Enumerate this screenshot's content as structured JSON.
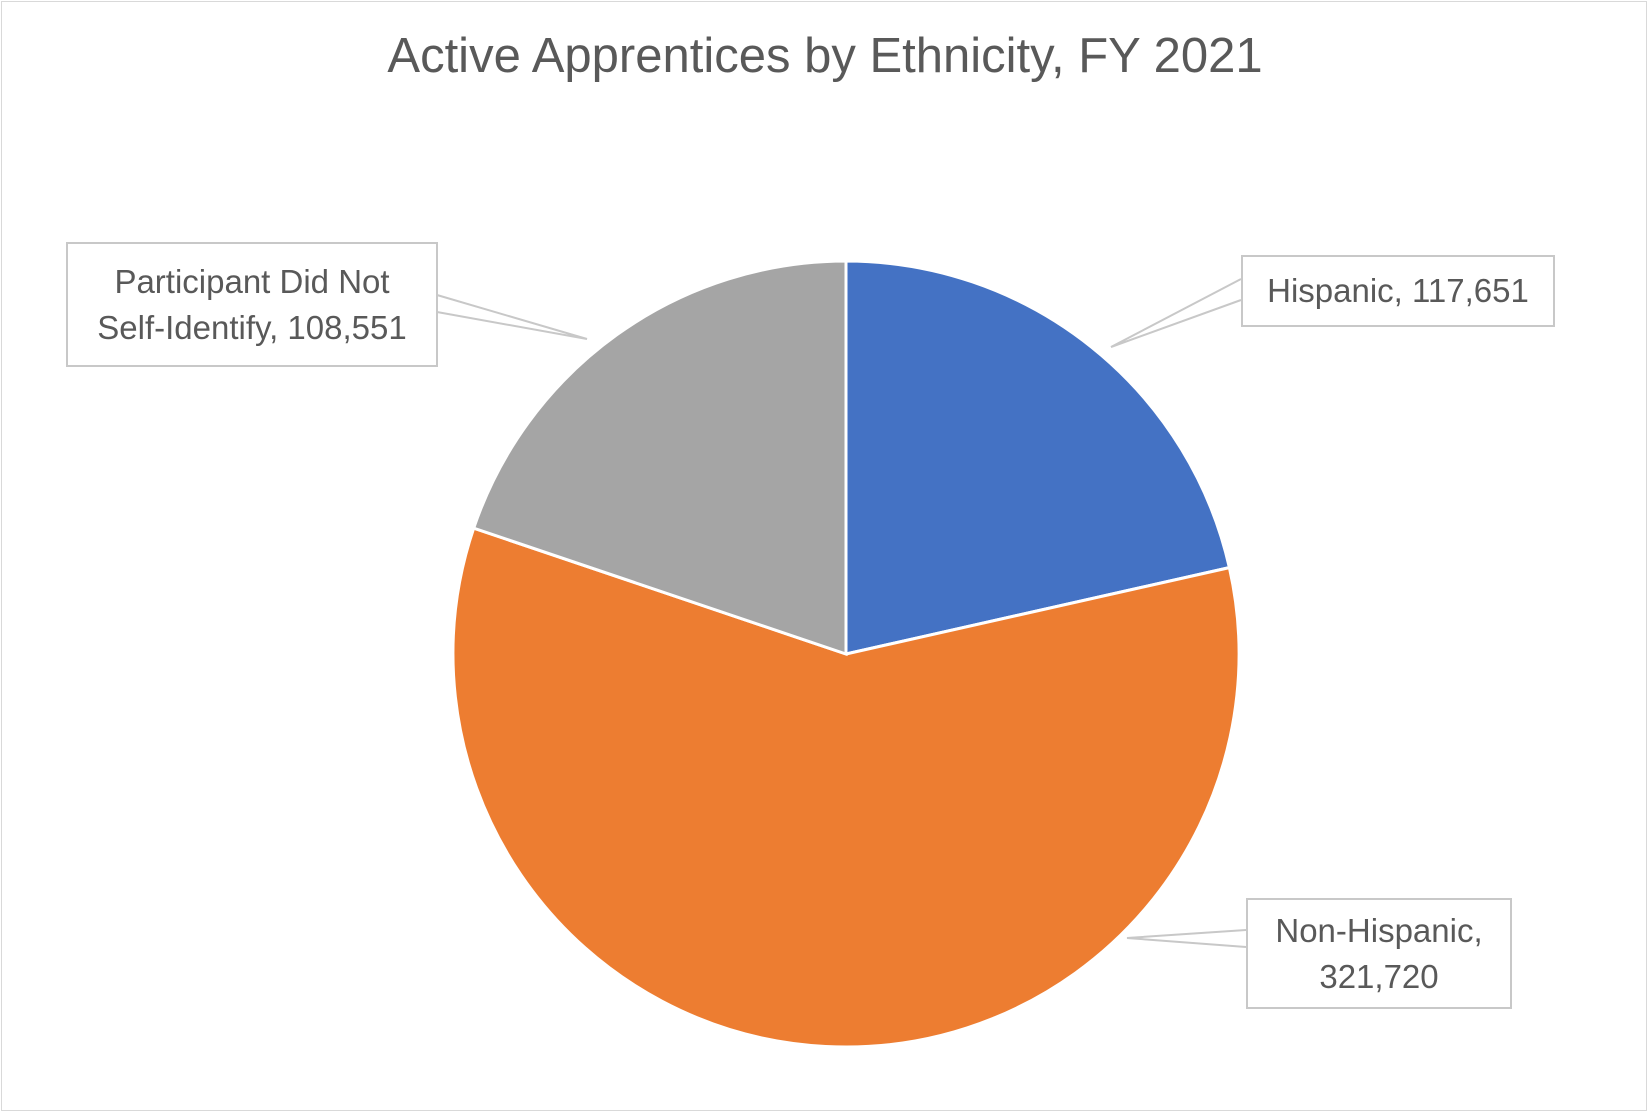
{
  "chart_data": {
    "type": "pie",
    "title": "Active Apprentices by Ethnicity, FY 2021",
    "slices": [
      {
        "label": "Hispanic",
        "value": 117651,
        "value_text": "117,651",
        "color": "#4472C4",
        "label_lines": [
          "Hispanic, 117,651"
        ]
      },
      {
        "label": "Non-Hispanic",
        "value": 321720,
        "value_text": "321,720",
        "color": "#ED7D31",
        "label_lines": [
          "Non-Hispanic,",
          "321,720"
        ]
      },
      {
        "label": "Participant Did Not Self-Identify",
        "value": 108551,
        "value_text": "108,551",
        "color": "#A5A5A5",
        "label_lines": [
          "Participant Did Not",
          "Self-Identify, 108,551"
        ]
      }
    ],
    "start_angle": "top",
    "direction": "clockwise",
    "legend": "none"
  }
}
